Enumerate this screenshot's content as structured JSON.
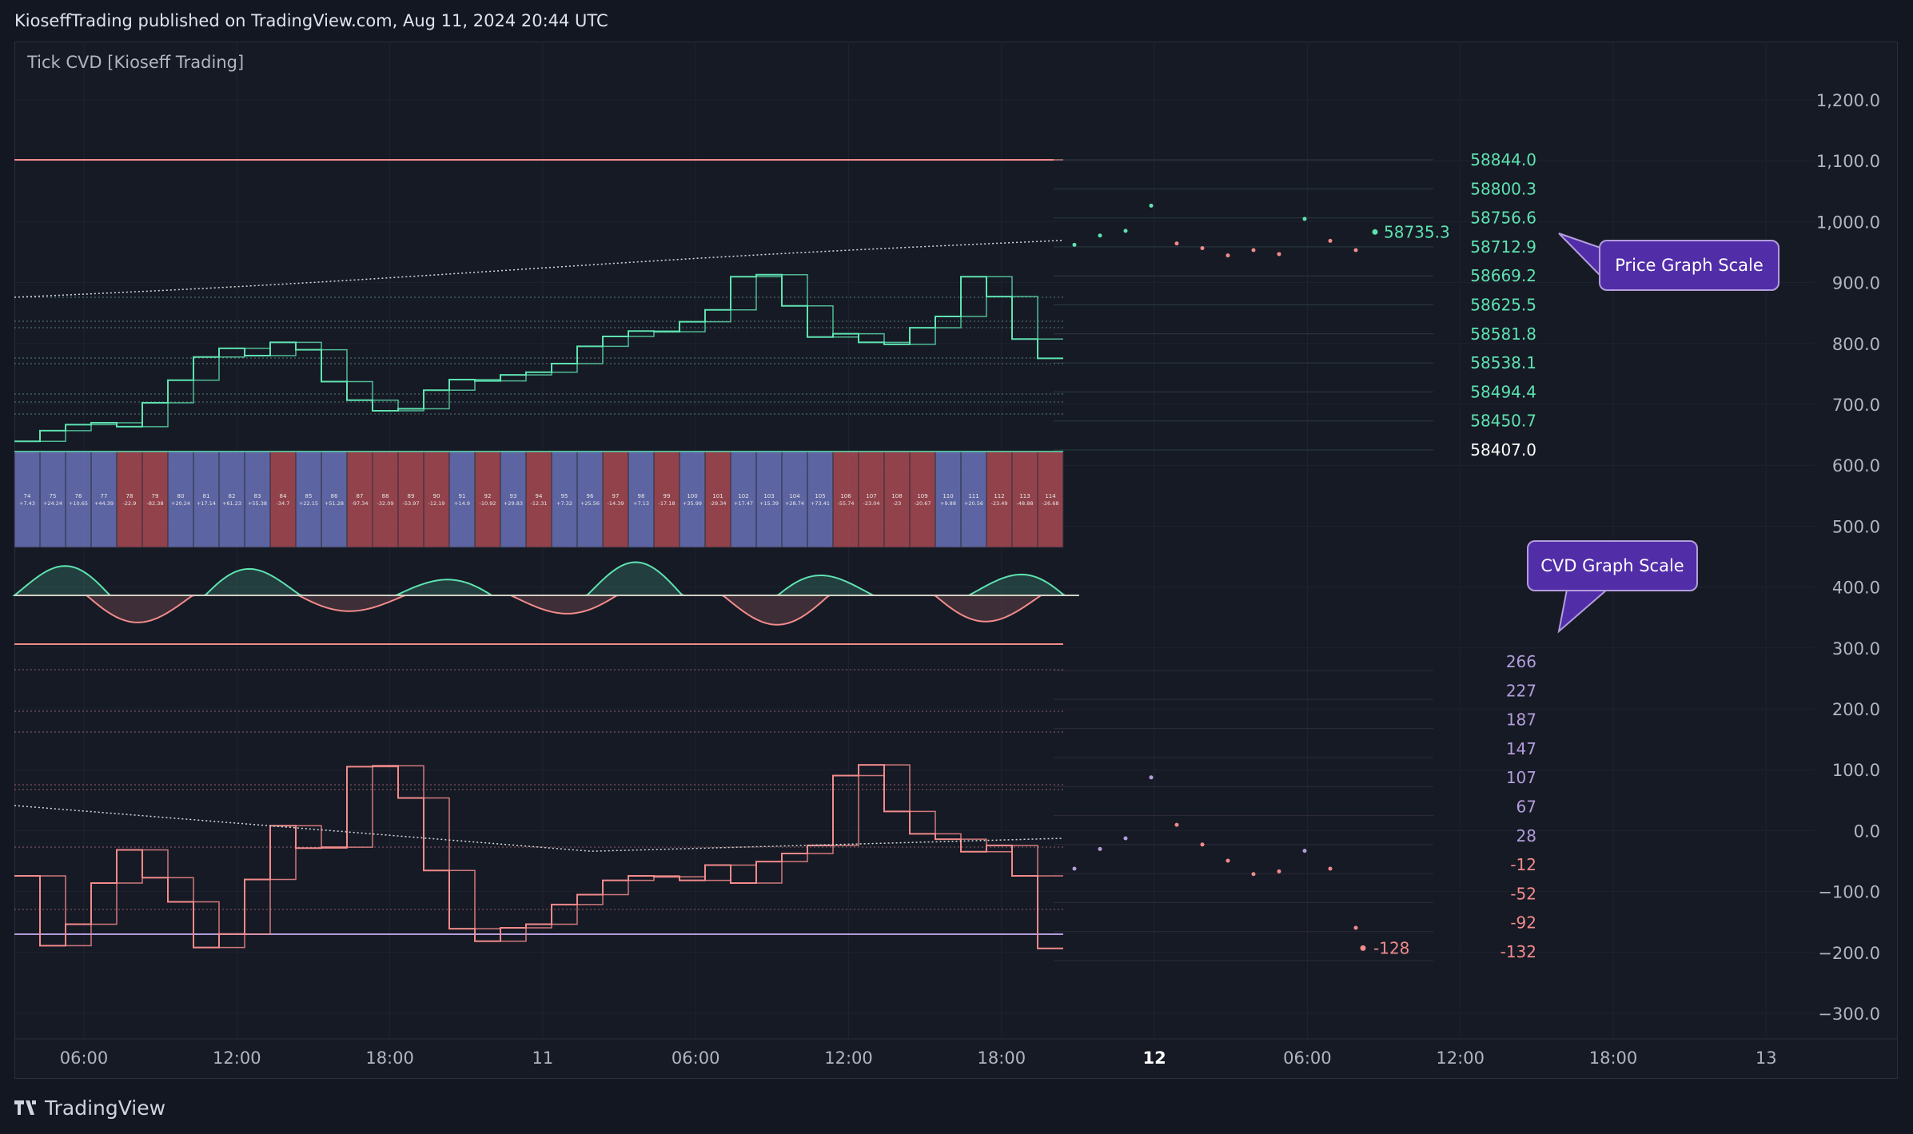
{
  "header": {
    "text": "KioseffTrading published on TradingView.com, Aug 11, 2024 20:44 UTC"
  },
  "indicator": {
    "title": "Tick CVD [Kioseff Trading]"
  },
  "footer": {
    "brand": "TradingView"
  },
  "callouts": {
    "price": "Price Graph Scale",
    "cvd": "CVD Graph Scale"
  },
  "colors": {
    "background": "#131722",
    "pane": "#161a25",
    "grid": "#1f2330",
    "price_line": "#5ee2b0",
    "cvd_line": "#f28b8b",
    "upper_band": "#f28b8b",
    "lower_band": "#b39ddb",
    "blue_cell": "#6a72b8",
    "red_cell": "#a84a52",
    "callout_fill": "#512da8",
    "axis_text": "#b2b5be"
  },
  "right_axis": {
    "ticks": [
      "1,200.0",
      "1,100.0",
      "1,000.0",
      "900.0",
      "800.0",
      "700.0",
      "600.0",
      "500.0",
      "400.0",
      "300.0",
      "200.0",
      "100.0",
      "0.0",
      "−100.0",
      "−200.0",
      "−300.0"
    ]
  },
  "time_axis": {
    "ticks": [
      {
        "label": "06:00",
        "bold": false
      },
      {
        "label": "12:00",
        "bold": false
      },
      {
        "label": "18:00",
        "bold": false
      },
      {
        "label": "11",
        "bold": false
      },
      {
        "label": "06:00",
        "bold": false
      },
      {
        "label": "12:00",
        "bold": false
      },
      {
        "label": "18:00",
        "bold": false
      },
      {
        "label": "12",
        "bold": true
      },
      {
        "label": "06:00",
        "bold": false
      },
      {
        "label": "12:00",
        "bold": false
      },
      {
        "label": "18:00",
        "bold": false
      },
      {
        "label": "13",
        "bold": false
      }
    ]
  },
  "price_scale": {
    "labels": [
      "58844.0",
      "58800.3",
      "58756.6",
      "58712.9",
      "58669.2",
      "58625.5",
      "58581.8",
      "58538.1",
      "58494.4",
      "58450.7",
      "58407.0"
    ],
    "current_value": "58735.3"
  },
  "cvd_scale": {
    "labels": [
      {
        "text": "266",
        "tone": "pos"
      },
      {
        "text": "227",
        "tone": "pos"
      },
      {
        "text": "187",
        "tone": "pos"
      },
      {
        "text": "147",
        "tone": "pos"
      },
      {
        "text": "107",
        "tone": "pos"
      },
      {
        "text": "67",
        "tone": "pos"
      },
      {
        "text": "28",
        "tone": "pos"
      },
      {
        "text": "-12",
        "tone": "neg"
      },
      {
        "text": "-52",
        "tone": "neg"
      },
      {
        "text": "-92",
        "tone": "neg"
      },
      {
        "text": "-132",
        "tone": "neg"
      }
    ],
    "current_value": "-128"
  },
  "chart_data": {
    "type": "line",
    "title": "Tick CVD [Kioseff Trading]",
    "bars": [
      {
        "index": 74,
        "delta": "+7.43",
        "tone": "blue"
      },
      {
        "index": 75,
        "delta": "+24.24",
        "tone": "blue"
      },
      {
        "index": 76,
        "delta": "+10.65",
        "tone": "blue"
      },
      {
        "index": 77,
        "delta": "+44.39",
        "tone": "blue"
      },
      {
        "index": 78,
        "delta": "-22.9",
        "tone": "red"
      },
      {
        "index": 79,
        "delta": "-82.38",
        "tone": "red"
      },
      {
        "index": 80,
        "delta": "+20.24",
        "tone": "blue"
      },
      {
        "index": 81,
        "delta": "+17.14",
        "tone": "blue"
      },
      {
        "index": 82,
        "delta": "+61.23",
        "tone": "blue"
      },
      {
        "index": 83,
        "delta": "+55.38",
        "tone": "blue"
      },
      {
        "index": 84,
        "delta": "-34.7",
        "tone": "red"
      },
      {
        "index": 85,
        "delta": "+22.15",
        "tone": "blue"
      },
      {
        "index": 86,
        "delta": "+51.28",
        "tone": "blue"
      },
      {
        "index": 87,
        "delta": "-97.34",
        "tone": "red"
      },
      {
        "index": 88,
        "delta": "-32.09",
        "tone": "red"
      },
      {
        "index": 89,
        "delta": "-53.97",
        "tone": "red"
      },
      {
        "index": 90,
        "delta": "-12.19",
        "tone": "red"
      },
      {
        "index": 91,
        "delta": "+14.9",
        "tone": "blue"
      },
      {
        "index": 92,
        "delta": "-10.92",
        "tone": "red"
      },
      {
        "index": 93,
        "delta": "+29.83",
        "tone": "blue"
      },
      {
        "index": 94,
        "delta": "-12.31",
        "tone": "red"
      },
      {
        "index": 95,
        "delta": "+7.32",
        "tone": "blue"
      },
      {
        "index": 96,
        "delta": "+25.56",
        "tone": "blue"
      },
      {
        "index": 97,
        "delta": "-14.39",
        "tone": "red"
      },
      {
        "index": 98,
        "delta": "+7.13",
        "tone": "blue"
      },
      {
        "index": 99,
        "delta": "-17.18",
        "tone": "red"
      },
      {
        "index": 100,
        "delta": "+35.99",
        "tone": "blue"
      },
      {
        "index": 101,
        "delta": "-29.34",
        "tone": "red"
      },
      {
        "index": 102,
        "delta": "+17.47",
        "tone": "blue"
      },
      {
        "index": 103,
        "delta": "+15.39",
        "tone": "blue"
      },
      {
        "index": 104,
        "delta": "+28.74",
        "tone": "blue"
      },
      {
        "index": 105,
        "delta": "+73.41",
        "tone": "blue"
      },
      {
        "index": 106,
        "delta": "-55.74",
        "tone": "red"
      },
      {
        "index": 107,
        "delta": "-23.04",
        "tone": "red"
      },
      {
        "index": 108,
        "delta": "-23",
        "tone": "red"
      },
      {
        "index": 109,
        "delta": "-20.67",
        "tone": "red"
      },
      {
        "index": 110,
        "delta": "+9.88",
        "tone": "blue"
      },
      {
        "index": 111,
        "delta": "+20.56",
        "tone": "blue"
      },
      {
        "index": 112,
        "delta": "-23.49",
        "tone": "red"
      },
      {
        "index": 113,
        "delta": "-48.88",
        "tone": "red"
      },
      {
        "index": 114,
        "delta": "-26.68",
        "tone": "red"
      }
    ],
    "price_steps": [
      58420,
      58436,
      58445,
      58448,
      58442,
      58478,
      58512,
      58547,
      58560,
      58549,
      58569,
      58558,
      58510,
      58482,
      58466,
      58469,
      58497,
      58513,
      58511,
      58520,
      58524,
      58537,
      58563,
      58578,
      58586,
      58585,
      58600,
      58618,
      58668,
      58671,
      58624,
      58577,
      58582,
      58569,
      58566,
      58591,
      58608,
      58668,
      58638,
      58574,
      58545
    ],
    "cvd_steps": [
      -50,
      -128,
      -104,
      -58,
      -21,
      -52,
      -79,
      -130,
      -115,
      -54,
      6,
      -19,
      -18,
      72,
      73,
      37,
      -44,
      -109,
      -123,
      -108,
      -104,
      -82,
      -71,
      -55,
      -50,
      -51,
      -55,
      -38,
      -58,
      -34,
      -25,
      -16,
      62,
      74,
      22,
      -3,
      -9,
      -23,
      -16,
      -50,
      -131
    ],
    "forecast": {
      "price": [
        58716,
        58730,
        58737,
        58775,
        58718,
        58711,
        58700,
        58708,
        58702,
        58755,
        58722,
        58708
      ],
      "cvd": [
        -42,
        -20,
        -8,
        60,
        7,
        -15,
        -33,
        -48,
        -45,
        -22,
        -42,
        -108
      ]
    },
    "price_range": [
      58407.0,
      58844.0
    ],
    "cvd_range": [
      -132,
      266
    ],
    "right_axis_range": [
      -300,
      1200
    ]
  }
}
